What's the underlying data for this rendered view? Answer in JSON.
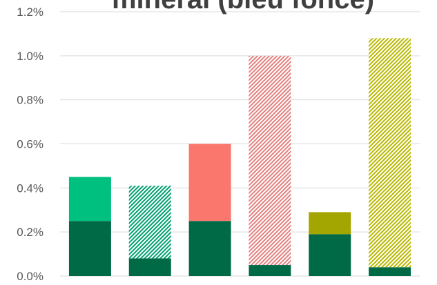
{
  "chart_data": {
    "type": "bar",
    "stacked": true,
    "title": "mineral (bleu foncé)",
    "xlabel": "",
    "ylabel": "",
    "ylim": [
      0,
      0.012
    ],
    "y_tick_values": [
      0,
      0.002,
      0.004,
      0.006,
      0.008,
      0.01,
      0.012
    ],
    "y_tick_labels": [
      "0.0%",
      "0.2%",
      "0.4%",
      "0.6%",
      "0.8%",
      "1.0%",
      "1.2%"
    ],
    "grid": true,
    "legend": "none",
    "categories": [
      "",
      "",
      "",
      "",
      "",
      ""
    ],
    "bars": [
      {
        "segments": [
          {
            "value": 0.0025,
            "color": "#006a47",
            "pattern": "solid"
          },
          {
            "value": 0.002,
            "color": "#00c07f",
            "pattern": "solid"
          }
        ]
      },
      {
        "segments": [
          {
            "value": 0.0008,
            "color": "#006a47",
            "pattern": "solid"
          },
          {
            "value": 0.0033,
            "color": "#00a070",
            "pattern": "hatch"
          }
        ]
      },
      {
        "segments": [
          {
            "value": 0.0025,
            "color": "#006a47",
            "pattern": "solid"
          },
          {
            "value": 0.0035,
            "color": "#fa776e",
            "pattern": "solid"
          }
        ]
      },
      {
        "segments": [
          {
            "value": 0.0005,
            "color": "#006a47",
            "pattern": "solid"
          },
          {
            "value": 0.0095,
            "color": "#e57f7f",
            "pattern": "hatch"
          }
        ]
      },
      {
        "segments": [
          {
            "value": 0.0019,
            "color": "#006a47",
            "pattern": "solid"
          },
          {
            "value": 0.001,
            "color": "#a3a500",
            "pattern": "solid"
          }
        ]
      },
      {
        "segments": [
          {
            "value": 0.0004,
            "color": "#006a47",
            "pattern": "solid"
          },
          {
            "value": 0.0104,
            "color": "#b8b800",
            "pattern": "hatch"
          }
        ]
      }
    ]
  },
  "colors": {
    "grid": "#d9d9d9",
    "axis_text": "#595959",
    "title_text": "#404040"
  }
}
